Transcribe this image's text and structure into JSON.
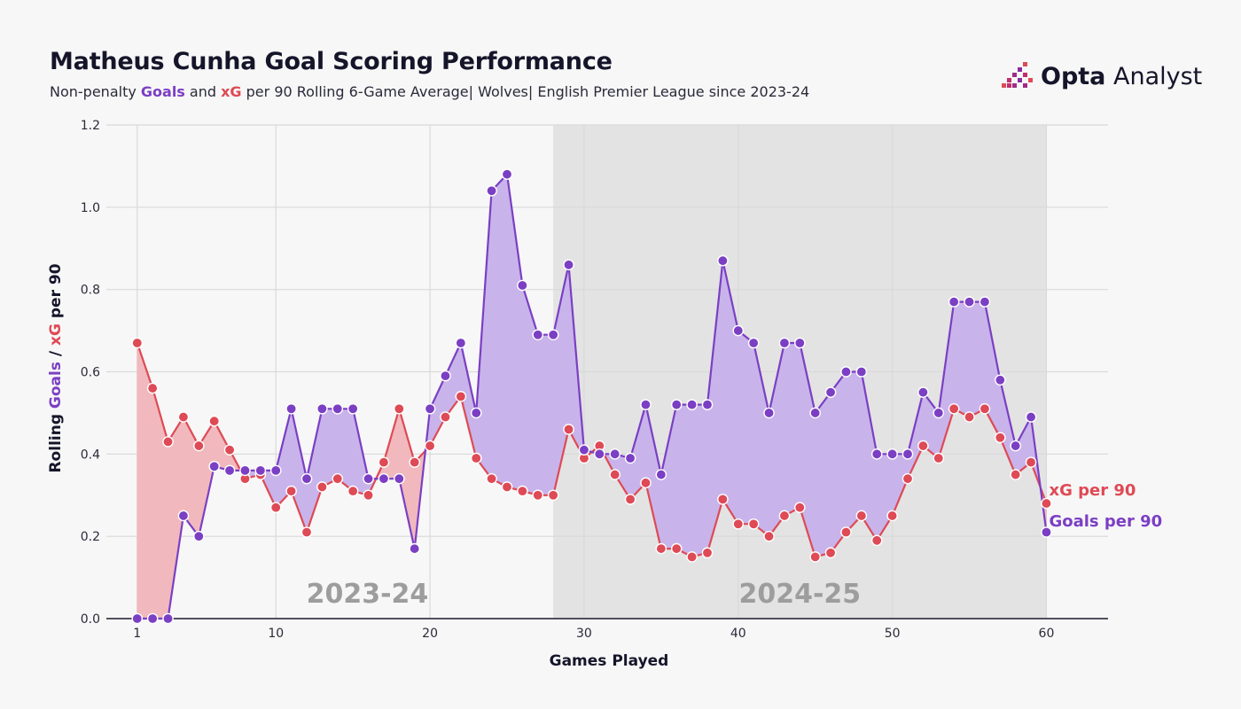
{
  "header": {
    "title": "Matheus Cunha Goal Scoring Performance",
    "subtitle_pre": "Non-penalty ",
    "subtitle_goals": "Goals",
    "subtitle_and": " and ",
    "subtitle_xg": "xG",
    "subtitle_post": " per 90 Rolling 6-Game Average| Wolves| English Premier League since 2023-24"
  },
  "logo": {
    "brand_bold": "Opta",
    "brand_light": " Analyst",
    "icon": "opta-bars-icon"
  },
  "colors": {
    "goals": "#7b3fc4",
    "xg": "#de4a55",
    "goals_fill": "#c8b4ea",
    "xg_fill": "#f1b9bd",
    "season_shade": "#e3e3e3"
  },
  "chart_data": {
    "type": "line",
    "title": "Matheus Cunha Goal Scoring Performance",
    "xlabel": "Games Played",
    "ylabel_parts": [
      "Rolling ",
      "Goals",
      " / ",
      "xG",
      " per 90"
    ],
    "xlim": [
      -1,
      64
    ],
    "ylim": [
      0,
      1.2
    ],
    "x_ticks": [
      1,
      10,
      20,
      30,
      40,
      50,
      60
    ],
    "y_ticks": [
      "0.0",
      "0.2",
      "0.4",
      "0.6",
      "0.8",
      "1.0",
      "1.2"
    ],
    "grid": true,
    "seasons": [
      {
        "label": "2023-24",
        "x_range": [
          1,
          28
        ],
        "shaded": false
      },
      {
        "label": "2024-25",
        "x_range": [
          28,
          60
        ],
        "shaded": true
      }
    ],
    "x": [
      1,
      2,
      3,
      4,
      5,
      6,
      7,
      8,
      9,
      10,
      11,
      12,
      13,
      14,
      15,
      16,
      17,
      18,
      19,
      20,
      21,
      22,
      23,
      24,
      25,
      26,
      27,
      28,
      29,
      30,
      31,
      32,
      33,
      34,
      35,
      36,
      37,
      38,
      39,
      40,
      41,
      42,
      43,
      44,
      45,
      46,
      47,
      48,
      49,
      50,
      51,
      52,
      53,
      54,
      55,
      56,
      57,
      58,
      59,
      60
    ],
    "series": [
      {
        "name": "xG per 90",
        "values": [
          0.67,
          0.56,
          0.43,
          0.49,
          0.42,
          0.48,
          0.41,
          0.34,
          0.35,
          0.27,
          0.31,
          0.21,
          0.32,
          0.34,
          0.31,
          0.3,
          0.38,
          0.51,
          0.38,
          0.42,
          0.49,
          0.54,
          0.39,
          0.34,
          0.32,
          0.31,
          0.3,
          0.3,
          0.46,
          0.39,
          0.42,
          0.35,
          0.29,
          0.33,
          0.17,
          0.17,
          0.15,
          0.16,
          0.29,
          0.23,
          0.23,
          0.2,
          0.25,
          0.27,
          0.15,
          0.16,
          0.21,
          0.25,
          0.19,
          0.25,
          0.34,
          0.42,
          0.39,
          0.51,
          0.49,
          0.51,
          0.44,
          0.35,
          0.38,
          0.28
        ]
      },
      {
        "name": "Goals per 90",
        "values": [
          0.0,
          0.0,
          0.0,
          0.25,
          0.2,
          0.37,
          0.36,
          0.36,
          0.36,
          0.36,
          0.51,
          0.34,
          0.51,
          0.51,
          0.51,
          0.34,
          0.34,
          0.34,
          0.17,
          0.51,
          0.59,
          0.67,
          0.5,
          1.04,
          1.08,
          0.81,
          0.69,
          0.69,
          0.86,
          0.41,
          0.4,
          0.4,
          0.39,
          0.52,
          0.35,
          0.52,
          0.52,
          0.52,
          0.87,
          0.7,
          0.67,
          0.5,
          0.67,
          0.67,
          0.5,
          0.55,
          0.6,
          0.6,
          0.4,
          0.4,
          0.4,
          0.55,
          0.5,
          0.77,
          0.77,
          0.77,
          0.58,
          0.42,
          0.49,
          0.21
        ]
      }
    ]
  }
}
